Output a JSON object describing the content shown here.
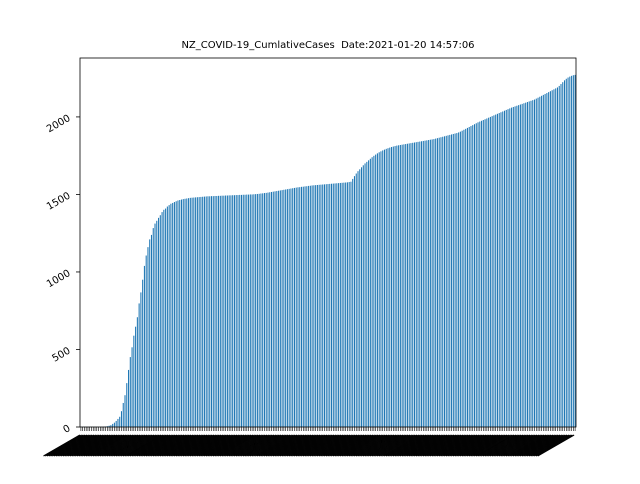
{
  "chart_data": {
    "type": "bar",
    "title": "NZ_COVID-19_CumlativeCases  Date:2021-01-20 14:57:06",
    "xlabel": "",
    "ylabel": "",
    "ylim": [
      0,
      2380
    ],
    "yticks": [
      0,
      500,
      1000,
      1500,
      2000
    ],
    "bar_color": "#1f77b4",
    "grid": false,
    "legend": "none",
    "x_tick_labels": "dense rotated labels (unreadable)",
    "values": [
      1,
      1,
      1,
      1,
      1,
      1,
      1,
      1,
      1,
      1,
      1,
      1,
      1,
      2,
      3,
      5,
      8,
      12,
      20,
      28,
      39,
      52,
      66,
      102,
      155,
      205,
      283,
      368,
      451,
      514,
      589,
      647,
      708,
      797,
      868,
      950,
      1039,
      1106,
      1160,
      1210,
      1239,
      1283,
      1312,
      1330,
      1349,
      1366,
      1386,
      1401,
      1409,
      1422,
      1431,
      1440,
      1445,
      1451,
      1456,
      1461,
      1464,
      1467,
      1470,
      1472,
      1474,
      1476,
      1478,
      1479,
      1480,
      1481,
      1482,
      1483,
      1484,
      1485,
      1486,
      1487,
      1488,
      1488,
      1489,
      1489,
      1490,
      1490,
      1491,
      1491,
      1492,
      1492,
      1493,
      1493,
      1494,
      1494,
      1495,
      1495,
      1496,
      1496,
      1497,
      1497,
      1498,
      1498,
      1499,
      1499,
      1500,
      1500,
      1501,
      1502,
      1503,
      1504,
      1506,
      1507,
      1509,
      1510,
      1512,
      1514,
      1516,
      1518,
      1520,
      1522,
      1524,
      1526,
      1528,
      1530,
      1532,
      1534,
      1536,
      1538,
      1540,
      1542,
      1544,
      1546,
      1547,
      1549,
      1550,
      1552,
      1553,
      1555,
      1556,
      1558,
      1559,
      1560,
      1561,
      1562,
      1563,
      1564,
      1565,
      1566,
      1567,
      1568,
      1569,
      1570,
      1571,
      1572,
      1573,
      1574,
      1575,
      1576,
      1577,
      1578,
      1580,
      1582,
      1600,
      1618,
      1635,
      1650,
      1662,
      1675,
      1688,
      1700,
      1710,
      1720,
      1730,
      1740,
      1749,
      1757,
      1765,
      1772,
      1778,
      1784,
      1789,
      1794,
      1798,
      1802,
      1806,
      1809,
      1812,
      1815,
      1817,
      1819,
      1821,
      1823,
      1825,
      1827,
      1829,
      1831,
      1833,
      1835,
      1837,
      1839,
      1841,
      1843,
      1845,
      1847,
      1849,
      1851,
      1853,
      1855,
      1857,
      1860,
      1863,
      1866,
      1869,
      1872,
      1875,
      1878,
      1881,
      1884,
      1887,
      1890,
      1893,
      1896,
      1900,
      1905,
      1911,
      1917,
      1923,
      1929,
      1935,
      1941,
      1947,
      1953,
      1959,
      1965,
      1970,
      1975,
      1980,
      1985,
      1990,
      1995,
      2000,
      2005,
      2010,
      2015,
      2020,
      2025,
      2030,
      2035,
      2040,
      2045,
      2050,
      2055,
      2060,
      2064,
      2068,
      2072,
      2076,
      2080,
      2084,
      2088,
      2092,
      2096,
      2100,
      2104,
      2108,
      2112,
      2118,
      2124,
      2130,
      2136,
      2142,
      2148,
      2154,
      2160,
      2166,
      2172,
      2178,
      2184,
      2190,
      2200,
      2212,
      2224,
      2236,
      2246,
      2254,
      2260,
      2265,
      2269,
      2271
    ]
  }
}
